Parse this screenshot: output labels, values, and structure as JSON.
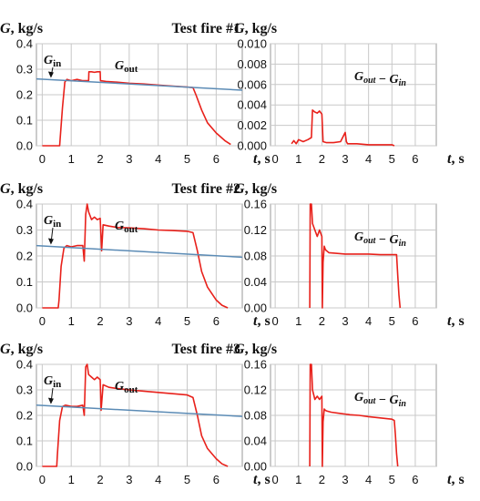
{
  "chart_data": [
    {
      "type": "line",
      "title": "Test fire #1",
      "ylabel_var": "G",
      "ylabel_unit": ", kg/s",
      "xlabel_var": "t",
      "xlabel_unit": ", s",
      "xlim": [
        -0.2,
        6.9
      ],
      "ylim": [
        0,
        0.4
      ],
      "xticks": [
        0,
        1,
        2,
        3,
        4,
        5,
        6
      ],
      "yticks": [
        "0.0",
        "0.1",
        "0.2",
        "0.3",
        "0.4"
      ],
      "grid": true,
      "series": [
        {
          "name": "G_out",
          "color": "#e8211b",
          "x": [
            0,
            0.6,
            0.62,
            0.7,
            0.78,
            0.85,
            1.0,
            1.2,
            1.4,
            1.6,
            1.61,
            1.7,
            1.8,
            1.9,
            2.0,
            2.01,
            2.2,
            2.5,
            3.0,
            3.5,
            4.0,
            4.5,
            5.0,
            5.2,
            5.3,
            5.5,
            5.7,
            6.0,
            6.3,
            6.5
          ],
          "y": [
            0,
            0,
            0.03,
            0.15,
            0.25,
            0.26,
            0.255,
            0.26,
            0.255,
            0.255,
            0.29,
            0.29,
            0.288,
            0.29,
            0.29,
            0.255,
            0.252,
            0.25,
            0.245,
            0.242,
            0.238,
            0.234,
            0.23,
            0.228,
            0.2,
            0.14,
            0.09,
            0.05,
            0.02,
            0.005
          ]
        },
        {
          "name": "G_in",
          "color": "#5b8bb5",
          "x": [
            -0.2,
            6.9
          ],
          "y": [
            0.262,
            0.218
          ]
        }
      ],
      "annotations": [
        {
          "text": "G",
          "sub": "in"
        },
        {
          "text": "G",
          "sub": "out"
        }
      ]
    },
    {
      "type": "line",
      "title": "",
      "ylabel_var": "G",
      "ylabel_unit": ", kg/s",
      "xlabel_var": "t",
      "xlabel_unit": ", s",
      "xlim": [
        -0.2,
        6.9
      ],
      "ylim": [
        0,
        0.01
      ],
      "xticks": [
        0,
        1,
        2,
        3,
        4,
        5,
        6
      ],
      "yticks": [
        "0.000",
        "0.002",
        "0.004",
        "0.006",
        "0.008",
        "0.010"
      ],
      "grid": true,
      "series": [
        {
          "name": "G_out − G_in",
          "color": "#e8211b",
          "x": [
            0.7,
            0.8,
            0.9,
            1.0,
            1.2,
            1.4,
            1.55,
            1.6,
            1.7,
            1.8,
            1.9,
            2.0,
            2.05,
            2.2,
            2.5,
            2.8,
            3.0,
            3.05,
            3.1,
            3.5,
            4.0,
            4.5,
            5.0,
            5.1
          ],
          "y": [
            0.0002,
            0.0005,
            0.0002,
            0.0006,
            0.0004,
            0.0006,
            0.0008,
            0.0035,
            0.0033,
            0.0032,
            0.0034,
            0.0031,
            0.0004,
            0.0003,
            0.0003,
            0.0004,
            0.0013,
            0.0004,
            0.0002,
            0.0002,
            0.0001,
            0.0001,
            0.0001,
            0
          ]
        }
      ],
      "annotations": [
        {
          "expr": "G_out − G_in"
        }
      ]
    },
    {
      "type": "line",
      "title": "Test fire #2",
      "ylabel_var": "G",
      "ylabel_unit": ", kg/s",
      "xlabel_var": "t",
      "xlabel_unit": ", s",
      "xlim": [
        -0.2,
        6.9
      ],
      "ylim": [
        0,
        0.4
      ],
      "xticks": [
        0,
        1,
        2,
        3,
        4,
        5,
        6
      ],
      "yticks": [
        "0.0",
        "0.1",
        "0.2",
        "0.3",
        "0.4"
      ],
      "grid": true,
      "series": [
        {
          "name": "G_out",
          "color": "#e8211b",
          "x": [
            0,
            0.55,
            0.58,
            0.65,
            0.75,
            0.85,
            1.0,
            1.2,
            1.4,
            1.45,
            1.5,
            1.55,
            1.6,
            1.7,
            1.8,
            1.9,
            2.0,
            2.05,
            2.1,
            2.3,
            2.6,
            3.0,
            3.5,
            4.0,
            4.5,
            5.0,
            5.2,
            5.35,
            5.5,
            5.7,
            6.0,
            6.2,
            6.4
          ],
          "y": [
            0,
            0,
            0.03,
            0.16,
            0.23,
            0.24,
            0.235,
            0.24,
            0.24,
            0.18,
            0.36,
            0.4,
            0.37,
            0.34,
            0.35,
            0.34,
            0.345,
            0.22,
            0.32,
            0.315,
            0.31,
            0.308,
            0.305,
            0.3,
            0.298,
            0.295,
            0.29,
            0.22,
            0.14,
            0.08,
            0.03,
            0.01,
            0
          ]
        },
        {
          "name": "G_in",
          "color": "#5b8bb5",
          "x": [
            -0.2,
            6.9
          ],
          "y": [
            0.24,
            0.195
          ]
        }
      ],
      "annotations": [
        {
          "text": "G",
          "sub": "in"
        },
        {
          "text": "G",
          "sub": "out"
        }
      ]
    },
    {
      "type": "line",
      "title": "",
      "ylabel_var": "G",
      "ylabel_unit": ", kg/s",
      "xlabel_var": "t",
      "xlabel_unit": ", s",
      "xlim": [
        -0.2,
        6.9
      ],
      "ylim": [
        0,
        0.16
      ],
      "xticks": [
        0,
        1,
        2,
        3,
        4,
        5,
        6
      ],
      "yticks": [
        "0.00",
        "0.04",
        "0.08",
        "0.12",
        "0.16"
      ],
      "grid": true,
      "series": [
        {
          "name": "G_out − G_in",
          "color": "#e8211b",
          "x": [
            1.48,
            1.5,
            1.55,
            1.6,
            1.7,
            1.8,
            1.9,
            2.0,
            2.02,
            2.05,
            2.1,
            2.15,
            2.2,
            2.3,
            2.6,
            3.0,
            3.5,
            4.0,
            4.5,
            5.0,
            5.2,
            5.25,
            5.3,
            5.35
          ],
          "y": [
            0,
            0.16,
            0.16,
            0.13,
            0.12,
            0.11,
            0.12,
            0.11,
            0,
            0.07,
            0.095,
            0.09,
            0.088,
            0.085,
            0.084,
            0.083,
            0.083,
            0.083,
            0.082,
            0.082,
            0.082,
            0.05,
            0.02,
            0
          ]
        }
      ],
      "annotations": [
        {
          "expr": "G_out − G_in"
        }
      ]
    },
    {
      "type": "line",
      "title": "Test fire #3",
      "ylabel_var": "G",
      "ylabel_unit": ", kg/s",
      "xlabel_var": "t",
      "xlabel_unit": ", s",
      "xlim": [
        -0.2,
        6.9
      ],
      "ylim": [
        0,
        0.4
      ],
      "xticks": [
        0,
        1,
        2,
        3,
        4,
        5,
        6
      ],
      "yticks": [
        "0.0",
        "0.1",
        "0.2",
        "0.3",
        "0.4"
      ],
      "grid": true,
      "series": [
        {
          "name": "G_out",
          "color": "#e8211b",
          "x": [
            0,
            0.5,
            0.52,
            0.6,
            0.7,
            0.8,
            1.0,
            1.2,
            1.4,
            1.45,
            1.5,
            1.55,
            1.6,
            1.7,
            1.8,
            1.9,
            2.0,
            2.03,
            2.1,
            2.3,
            2.6,
            3.0,
            3.5,
            4.0,
            4.5,
            5.0,
            5.2,
            5.35,
            5.5,
            5.7,
            6.0,
            6.2,
            6.4
          ],
          "y": [
            0,
            0,
            0.04,
            0.18,
            0.235,
            0.24,
            0.235,
            0.235,
            0.24,
            0.2,
            0.39,
            0.4,
            0.36,
            0.35,
            0.34,
            0.35,
            0.34,
            0.22,
            0.32,
            0.31,
            0.305,
            0.3,
            0.295,
            0.29,
            0.285,
            0.28,
            0.27,
            0.2,
            0.12,
            0.07,
            0.03,
            0.01,
            0
          ]
        },
        {
          "name": "G_in",
          "color": "#5b8bb5",
          "x": [
            -0.2,
            6.9
          ],
          "y": [
            0.24,
            0.196
          ]
        }
      ],
      "annotations": [
        {
          "text": "G",
          "sub": "in"
        },
        {
          "text": "G",
          "sub": "out"
        }
      ]
    },
    {
      "type": "line",
      "title": "",
      "ylabel_var": "G",
      "ylabel_unit": ", kg/s",
      "xlabel_var": "t",
      "xlabel_unit": ", s",
      "xlim": [
        -0.2,
        6.9
      ],
      "ylim": [
        0,
        0.16
      ],
      "xticks": [
        0,
        1,
        2,
        3,
        4,
        5,
        6
      ],
      "yticks": [
        "0.00",
        "0.04",
        "0.08",
        "0.12",
        "0.16"
      ],
      "grid": true,
      "series": [
        {
          "name": "G_out − G_in",
          "color": "#e8211b",
          "x": [
            1.48,
            1.5,
            1.55,
            1.6,
            1.7,
            1.8,
            1.9,
            2.0,
            2.02,
            2.05,
            2.1,
            2.15,
            2.2,
            2.4,
            2.8,
            3.2,
            3.6,
            4.0,
            4.5,
            5.0,
            5.1,
            5.15,
            5.2,
            5.25
          ],
          "y": [
            0,
            0.16,
            0.16,
            0.12,
            0.105,
            0.11,
            0.105,
            0.11,
            0,
            0.07,
            0.09,
            0.088,
            0.087,
            0.085,
            0.083,
            0.081,
            0.08,
            0.078,
            0.076,
            0.074,
            0.072,
            0.05,
            0.02,
            0
          ]
        }
      ],
      "annotations": [
        {
          "expr": "G_out − G_in"
        }
      ]
    }
  ]
}
